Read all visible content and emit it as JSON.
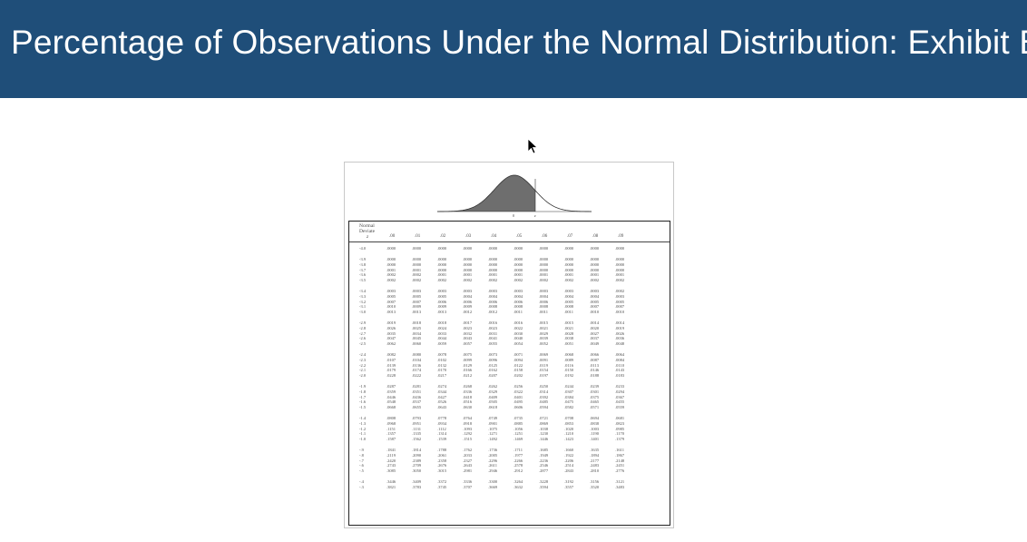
{
  "title": "Percentage of Observations Under the Normal Distribution: Exhibit B",
  "icons": {
    "cursor": "mouse-pointer-icon"
  },
  "colors": {
    "title_bar": "#1f4e79",
    "curve_fill": "#6e6e6e"
  },
  "curve": {
    "tick_left": "0",
    "tick_right": "z"
  },
  "table": {
    "caption_line1": "Normal",
    "caption_line2": "Deviate",
    "caption_line3": "z",
    "columns": [
      ".00",
      ".01",
      ".02",
      ".03",
      ".04",
      ".05",
      ".06",
      ".07",
      ".08",
      ".09"
    ],
    "groups": [
      {
        "rows": [
          {
            "z": "-4.0",
            "values": [
              ".0000",
              ".0000",
              ".0000",
              ".0000",
              ".0000",
              ".0000",
              ".0000",
              ".0000",
              ".0000",
              ".0000"
            ]
          }
        ]
      },
      {
        "rows": [
          {
            "z": "-3.9",
            "values": [
              ".0000",
              ".0000",
              ".0000",
              ".0000",
              ".0000",
              ".0000",
              ".0000",
              ".0000",
              ".0000",
              ".0000"
            ]
          },
          {
            "z": "-3.8",
            "values": [
              ".0000",
              ".0000",
              ".0000",
              ".0000",
              ".0000",
              ".0000",
              ".0000",
              ".0000",
              ".0000",
              ".0000"
            ]
          },
          {
            "z": "-3.7",
            "values": [
              ".0001",
              ".0001",
              ".0000",
              ".0000",
              ".0000",
              ".0000",
              ".0000",
              ".0000",
              ".0000",
              ".0000"
            ]
          },
          {
            "z": "-3.6",
            "values": [
              ".0002",
              ".0002",
              ".0001",
              ".0001",
              ".0001",
              ".0001",
              ".0001",
              ".0001",
              ".0001",
              ".0001"
            ]
          },
          {
            "z": "-3.5",
            "values": [
              ".0002",
              ".0002",
              ".0002",
              ".0002",
              ".0002",
              ".0002",
              ".0002",
              ".0002",
              ".0002",
              ".0002"
            ]
          }
        ]
      },
      {
        "rows": [
          {
            "z": "-3.4",
            "values": [
              ".0003",
              ".0003",
              ".0003",
              ".0003",
              ".0003",
              ".0003",
              ".0003",
              ".0003",
              ".0003",
              ".0002"
            ]
          },
          {
            "z": "-3.3",
            "values": [
              ".0005",
              ".0005",
              ".0005",
              ".0004",
              ".0004",
              ".0004",
              ".0004",
              ".0004",
              ".0004",
              ".0003"
            ]
          },
          {
            "z": "-3.2",
            "values": [
              ".0007",
              ".0007",
              ".0006",
              ".0006",
              ".0006",
              ".0006",
              ".0006",
              ".0005",
              ".0005",
              ".0005"
            ]
          },
          {
            "z": "-3.1",
            "values": [
              ".0010",
              ".0009",
              ".0009",
              ".0009",
              ".0008",
              ".0008",
              ".0008",
              ".0008",
              ".0007",
              ".0007"
            ]
          },
          {
            "z": "-3.0",
            "values": [
              ".0013",
              ".0013",
              ".0013",
              ".0012",
              ".0012",
              ".0011",
              ".0011",
              ".0011",
              ".0010",
              ".0010"
            ]
          }
        ]
      },
      {
        "rows": [
          {
            "z": "-2.9",
            "values": [
              ".0019",
              ".0018",
              ".0018",
              ".0017",
              ".0016",
              ".0016",
              ".0015",
              ".0015",
              ".0014",
              ".0014"
            ]
          },
          {
            "z": "-2.8",
            "values": [
              ".0026",
              ".0025",
              ".0024",
              ".0023",
              ".0023",
              ".0022",
              ".0021",
              ".0021",
              ".0020",
              ".0019"
            ]
          },
          {
            "z": "-2.7",
            "values": [
              ".0035",
              ".0034",
              ".0033",
              ".0032",
              ".0031",
              ".0030",
              ".0029",
              ".0028",
              ".0027",
              ".0026"
            ]
          },
          {
            "z": "-2.6",
            "values": [
              ".0047",
              ".0045",
              ".0044",
              ".0043",
              ".0041",
              ".0040",
              ".0039",
              ".0038",
              ".0037",
              ".0036"
            ]
          },
          {
            "z": "-2.5",
            "values": [
              ".0062",
              ".0060",
              ".0059",
              ".0057",
              ".0055",
              ".0054",
              ".0052",
              ".0051",
              ".0049",
              ".0048"
            ]
          }
        ]
      },
      {
        "rows": [
          {
            "z": "-2.4",
            "values": [
              ".0082",
              ".0080",
              ".0078",
              ".0075",
              ".0073",
              ".0071",
              ".0069",
              ".0068",
              ".0066",
              ".0064"
            ]
          },
          {
            "z": "-2.3",
            "values": [
              ".0107",
              ".0104",
              ".0102",
              ".0099",
              ".0096",
              ".0094",
              ".0091",
              ".0089",
              ".0087",
              ".0084"
            ]
          },
          {
            "z": "-2.2",
            "values": [
              ".0139",
              ".0136",
              ".0132",
              ".0129",
              ".0125",
              ".0122",
              ".0119",
              ".0116",
              ".0113",
              ".0110"
            ]
          },
          {
            "z": "-2.1",
            "values": [
              ".0179",
              ".0174",
              ".0170",
              ".0166",
              ".0162",
              ".0158",
              ".0154",
              ".0150",
              ".0146",
              ".0143"
            ]
          },
          {
            "z": "-2.0",
            "values": [
              ".0228",
              ".0222",
              ".0217",
              ".0212",
              ".0207",
              ".0202",
              ".0197",
              ".0192",
              ".0188",
              ".0183"
            ]
          }
        ]
      },
      {
        "rows": [
          {
            "z": "-1.9",
            "values": [
              ".0287",
              ".0281",
              ".0274",
              ".0268",
              ".0262",
              ".0256",
              ".0250",
              ".0244",
              ".0239",
              ".0233"
            ]
          },
          {
            "z": "-1.8",
            "values": [
              ".0359",
              ".0351",
              ".0344",
              ".0336",
              ".0329",
              ".0322",
              ".0314",
              ".0307",
              ".0301",
              ".0294"
            ]
          },
          {
            "z": "-1.7",
            "values": [
              ".0446",
              ".0436",
              ".0427",
              ".0418",
              ".0409",
              ".0401",
              ".0392",
              ".0384",
              ".0375",
              ".0367"
            ]
          },
          {
            "z": "-1.6",
            "values": [
              ".0548",
              ".0537",
              ".0526",
              ".0516",
              ".0505",
              ".0495",
              ".0485",
              ".0475",
              ".0465",
              ".0455"
            ]
          },
          {
            "z": "-1.5",
            "values": [
              ".0668",
              ".0655",
              ".0643",
              ".0630",
              ".0618",
              ".0606",
              ".0594",
              ".0582",
              ".0571",
              ".0559"
            ]
          }
        ]
      },
      {
        "rows": [
          {
            "z": "-1.4",
            "values": [
              ".0808",
              ".0793",
              ".0778",
              ".0764",
              ".0749",
              ".0735",
              ".0721",
              ".0708",
              ".0694",
              ".0681"
            ]
          },
          {
            "z": "-1.3",
            "values": [
              ".0968",
              ".0951",
              ".0934",
              ".0918",
              ".0901",
              ".0885",
              ".0869",
              ".0853",
              ".0838",
              ".0823"
            ]
          },
          {
            "z": "-1.2",
            "values": [
              ".1151",
              ".1131",
              ".1112",
              ".1093",
              ".1075",
              ".1056",
              ".1038",
              ".1020",
              ".1003",
              ".0985"
            ]
          },
          {
            "z": "-1.1",
            "values": [
              ".1357",
              ".1335",
              ".1314",
              ".1292",
              ".1271",
              ".1251",
              ".1230",
              ".1210",
              ".1190",
              ".1170"
            ]
          },
          {
            "z": "-1.0",
            "values": [
              ".1587",
              ".1562",
              ".1539",
              ".1515",
              ".1492",
              ".1469",
              ".1446",
              ".1423",
              ".1401",
              ".1379"
            ]
          }
        ]
      },
      {
        "rows": [
          {
            "z": "-.9",
            "values": [
              ".1841",
              ".1814",
              ".1788",
              ".1762",
              ".1736",
              ".1711",
              ".1685",
              ".1660",
              ".1635",
              ".1611"
            ]
          },
          {
            "z": "-.8",
            "values": [
              ".2119",
              ".2090",
              ".2061",
              ".2033",
              ".2005",
              ".1977",
              ".1949",
              ".1922",
              ".1894",
              ".1867"
            ]
          },
          {
            "z": "-.7",
            "values": [
              ".2420",
              ".2389",
              ".2358",
              ".2327",
              ".2296",
              ".2266",
              ".2236",
              ".2206",
              ".2177",
              ".2148"
            ]
          },
          {
            "z": "-.6",
            "values": [
              ".2743",
              ".2709",
              ".2676",
              ".2643",
              ".2611",
              ".2578",
              ".2546",
              ".2514",
              ".2483",
              ".2451"
            ]
          },
          {
            "z": "-.5",
            "values": [
              ".3085",
              ".3050",
              ".3015",
              ".2981",
              ".2946",
              ".2912",
              ".2877",
              ".2843",
              ".2810",
              ".2776"
            ]
          }
        ]
      },
      {
        "rows": [
          {
            "z": "-.4",
            "values": [
              ".3446",
              ".3409",
              ".3372",
              ".3336",
              ".3300",
              ".3264",
              ".3228",
              ".3192",
              ".3156",
              ".3121"
            ]
          },
          {
            "z": "-.3",
            "values": [
              ".3821",
              ".3783",
              ".3745",
              ".3707",
              ".3669",
              ".3632",
              ".3594",
              ".3557",
              ".3520",
              ".3483"
            ]
          }
        ]
      }
    ]
  }
}
